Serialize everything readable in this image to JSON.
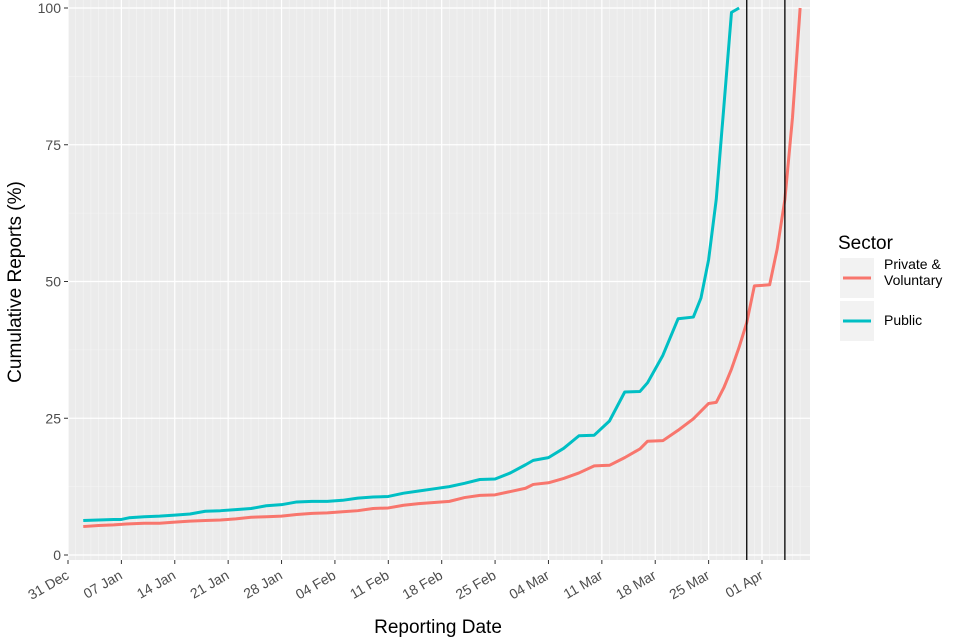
{
  "chart_data": {
    "type": "line",
    "title": "",
    "xlabel": "Reporting Date",
    "ylabel": "Cumulative Reports (%)",
    "xlim": [
      "2020-12-31",
      "2021-04-04"
    ],
    "ylim": [
      0,
      100
    ],
    "x_ticks": [
      {
        "date": "2020-12-31",
        "label": "31 Dec"
      },
      {
        "date": "2021-01-07",
        "label": "07 Jan"
      },
      {
        "date": "2021-01-14",
        "label": "14 Jan"
      },
      {
        "date": "2021-01-21",
        "label": "21 Jan"
      },
      {
        "date": "2021-01-28",
        "label": "28 Jan"
      },
      {
        "date": "2021-02-04",
        "label": "04 Feb"
      },
      {
        "date": "2021-02-11",
        "label": "11 Feb"
      },
      {
        "date": "2021-02-18",
        "label": "18 Feb"
      },
      {
        "date": "2021-02-25",
        "label": "25 Feb"
      },
      {
        "date": "2021-03-04",
        "label": "04 Mar"
      },
      {
        "date": "2021-03-11",
        "label": "11 Mar"
      },
      {
        "date": "2021-03-18",
        "label": "18 Mar"
      },
      {
        "date": "2021-03-25",
        "label": "25 Mar"
      },
      {
        "date": "2021-04-01",
        "label": "01 Apr"
      }
    ],
    "y_ticks": [
      0,
      25,
      50,
      75,
      100
    ],
    "grid": true,
    "legend": {
      "title": "Sector",
      "placement": "right"
    },
    "vertical_lines": [
      {
        "x": "2021-03-30",
        "color": "#000000"
      },
      {
        "x": "2021-04-04",
        "color": "#000000"
      }
    ],
    "series": [
      {
        "name": "Private & Voluntary",
        "color": "#F8766D",
        "points": [
          [
            "2021-01-02",
            5.2
          ],
          [
            "2021-01-04",
            5.4
          ],
          [
            "2021-01-06",
            5.5
          ],
          [
            "2021-01-08",
            5.7
          ],
          [
            "2021-01-10",
            5.8
          ],
          [
            "2021-01-12",
            5.8
          ],
          [
            "2021-01-14",
            6.0
          ],
          [
            "2021-01-16",
            6.2
          ],
          [
            "2021-01-18",
            6.3
          ],
          [
            "2021-01-20",
            6.4
          ],
          [
            "2021-01-22",
            6.6
          ],
          [
            "2021-01-24",
            6.9
          ],
          [
            "2021-01-26",
            7.0
          ],
          [
            "2021-01-28",
            7.1
          ],
          [
            "2021-01-30",
            7.4
          ],
          [
            "2021-02-01",
            7.6
          ],
          [
            "2021-02-03",
            7.7
          ],
          [
            "2021-02-05",
            7.9
          ],
          [
            "2021-02-07",
            8.1
          ],
          [
            "2021-02-09",
            8.5
          ],
          [
            "2021-02-11",
            8.6
          ],
          [
            "2021-02-13",
            9.1
          ],
          [
            "2021-02-15",
            9.4
          ],
          [
            "2021-02-17",
            9.6
          ],
          [
            "2021-02-19",
            9.8
          ],
          [
            "2021-02-21",
            10.5
          ],
          [
            "2021-02-23",
            10.9
          ],
          [
            "2021-02-25",
            11.0
          ],
          [
            "2021-02-27",
            11.6
          ],
          [
            "2021-03-01",
            12.2
          ],
          [
            "2021-03-02",
            12.9
          ],
          [
            "2021-03-04",
            13.2
          ],
          [
            "2021-03-06",
            14.0
          ],
          [
            "2021-03-08",
            15.0
          ],
          [
            "2021-03-10",
            16.3
          ],
          [
            "2021-03-12",
            16.4
          ],
          [
            "2021-03-14",
            17.8
          ],
          [
            "2021-03-16",
            19.4
          ],
          [
            "2021-03-17",
            20.8
          ],
          [
            "2021-03-19",
            20.9
          ],
          [
            "2021-03-21",
            22.8
          ],
          [
            "2021-03-23",
            24.9
          ],
          [
            "2021-03-25",
            27.7
          ],
          [
            "2021-03-26",
            27.9
          ],
          [
            "2021-03-27",
            30.6
          ],
          [
            "2021-03-28",
            34.0
          ],
          [
            "2021-03-29",
            38.0
          ],
          [
            "2021-03-30",
            42.5
          ],
          [
            "2021-03-31",
            49.2
          ],
          [
            "2021-04-01",
            49.3
          ],
          [
            "2021-04-02",
            49.4
          ],
          [
            "2021-04-03",
            56.0
          ],
          [
            "2021-04-04",
            65.0
          ],
          [
            "2021-04-05",
            80.0
          ],
          [
            "2021-04-06",
            100.0
          ]
        ]
      },
      {
        "name": "Public",
        "color": "#00BFC4",
        "points": [
          [
            "2021-01-02",
            6.3
          ],
          [
            "2021-01-04",
            6.4
          ],
          [
            "2021-01-06",
            6.5
          ],
          [
            "2021-01-07",
            6.5
          ],
          [
            "2021-01-08",
            6.8
          ],
          [
            "2021-01-10",
            7.0
          ],
          [
            "2021-01-12",
            7.1
          ],
          [
            "2021-01-14",
            7.3
          ],
          [
            "2021-01-16",
            7.5
          ],
          [
            "2021-01-18",
            8.0
          ],
          [
            "2021-01-20",
            8.1
          ],
          [
            "2021-01-22",
            8.3
          ],
          [
            "2021-01-24",
            8.5
          ],
          [
            "2021-01-26",
            9.0
          ],
          [
            "2021-01-28",
            9.2
          ],
          [
            "2021-01-30",
            9.7
          ],
          [
            "2021-02-01",
            9.8
          ],
          [
            "2021-02-03",
            9.8
          ],
          [
            "2021-02-05",
            10.0
          ],
          [
            "2021-02-07",
            10.4
          ],
          [
            "2021-02-09",
            10.6
          ],
          [
            "2021-02-11",
            10.7
          ],
          [
            "2021-02-13",
            11.3
          ],
          [
            "2021-02-15",
            11.7
          ],
          [
            "2021-02-17",
            12.1
          ],
          [
            "2021-02-19",
            12.5
          ],
          [
            "2021-02-21",
            13.1
          ],
          [
            "2021-02-23",
            13.8
          ],
          [
            "2021-02-25",
            13.9
          ],
          [
            "2021-02-27",
            15.0
          ],
          [
            "2021-03-01",
            16.5
          ],
          [
            "2021-03-02",
            17.3
          ],
          [
            "2021-03-04",
            17.8
          ],
          [
            "2021-03-06",
            19.5
          ],
          [
            "2021-03-08",
            21.8
          ],
          [
            "2021-03-10",
            21.9
          ],
          [
            "2021-03-12",
            24.5
          ],
          [
            "2021-03-14",
            29.8
          ],
          [
            "2021-03-16",
            29.9
          ],
          [
            "2021-03-17",
            31.5
          ],
          [
            "2021-03-19",
            36.5
          ],
          [
            "2021-03-21",
            43.2
          ],
          [
            "2021-03-23",
            43.5
          ],
          [
            "2021-03-24",
            47.0
          ],
          [
            "2021-03-25",
            54.0
          ],
          [
            "2021-03-26",
            65.0
          ],
          [
            "2021-03-27",
            82.0
          ],
          [
            "2021-03-28",
            99.2
          ],
          [
            "2021-03-29",
            100.0
          ]
        ]
      }
    ]
  }
}
